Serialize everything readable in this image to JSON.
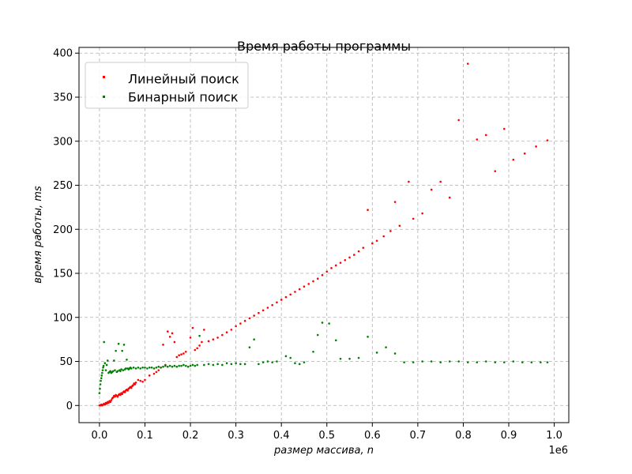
{
  "chart_data": {
    "type": "scatter",
    "title": "Время работы программы",
    "xlabel": "размер массива, n",
    "ylabel": "время работы, ms",
    "x_offset_label": "1e6",
    "xlim": [
      -0.045,
      1.032
    ],
    "ylim": [
      -19.5,
      406.5
    ],
    "x_ticks": [
      0.0,
      0.1,
      0.2,
      0.3,
      0.4,
      0.5,
      0.6,
      0.7,
      0.8,
      0.9,
      1.0
    ],
    "x_tick_labels": [
      "0.0",
      "0.1",
      "0.2",
      "0.3",
      "0.4",
      "0.5",
      "0.6",
      "0.7",
      "0.8",
      "0.9",
      "1.0"
    ],
    "y_ticks": [
      0,
      50,
      100,
      150,
      200,
      250,
      300,
      350,
      400
    ],
    "y_tick_labels": [
      "0",
      "50",
      "100",
      "150",
      "200",
      "250",
      "300",
      "350",
      "400"
    ],
    "grid": true,
    "legend_position": "upper-left",
    "series": [
      {
        "name": "Линейный поиск",
        "color": "#ff0000",
        "marker": "point",
        "points": [
          [
            0.0,
            0
          ],
          [
            0.002,
            0
          ],
          [
            0.004,
            1
          ],
          [
            0.006,
            0
          ],
          [
            0.008,
            1
          ],
          [
            0.01,
            2
          ],
          [
            0.012,
            1
          ],
          [
            0.014,
            3
          ],
          [
            0.016,
            2
          ],
          [
            0.018,
            4
          ],
          [
            0.02,
            3
          ],
          [
            0.022,
            5
          ],
          [
            0.024,
            4
          ],
          [
            0.026,
            6
          ],
          [
            0.028,
            8
          ],
          [
            0.03,
            9
          ],
          [
            0.032,
            11
          ],
          [
            0.034,
            10
          ],
          [
            0.036,
            12
          ],
          [
            0.038,
            11
          ],
          [
            0.04,
            10
          ],
          [
            0.042,
            12
          ],
          [
            0.044,
            13
          ],
          [
            0.046,
            12
          ],
          [
            0.048,
            14
          ],
          [
            0.05,
            13
          ],
          [
            0.052,
            15
          ],
          [
            0.054,
            16
          ],
          [
            0.056,
            15
          ],
          [
            0.058,
            17
          ],
          [
            0.06,
            18
          ],
          [
            0.062,
            17
          ],
          [
            0.064,
            19
          ],
          [
            0.066,
            20
          ],
          [
            0.068,
            21
          ],
          [
            0.07,
            20
          ],
          [
            0.072,
            22
          ],
          [
            0.074,
            23
          ],
          [
            0.076,
            25
          ],
          [
            0.078,
            24
          ],
          [
            0.08,
            26
          ],
          [
            0.085,
            29
          ],
          [
            0.09,
            28
          ],
          [
            0.095,
            27
          ],
          [
            0.1,
            29
          ],
          [
            0.11,
            34
          ],
          [
            0.12,
            36
          ],
          [
            0.125,
            38
          ],
          [
            0.13,
            40
          ],
          [
            0.135,
            43
          ],
          [
            0.14,
            69
          ],
          [
            0.145,
            46
          ],
          [
            0.15,
            84
          ],
          [
            0.155,
            78
          ],
          [
            0.16,
            82
          ],
          [
            0.165,
            72
          ],
          [
            0.17,
            55
          ],
          [
            0.175,
            57
          ],
          [
            0.18,
            58
          ],
          [
            0.185,
            59
          ],
          [
            0.19,
            61
          ],
          [
            0.2,
            77
          ],
          [
            0.205,
            88
          ],
          [
            0.21,
            63
          ],
          [
            0.215,
            65
          ],
          [
            0.22,
            68
          ],
          [
            0.225,
            72
          ],
          [
            0.23,
            86
          ],
          [
            0.24,
            73
          ],
          [
            0.25,
            75
          ],
          [
            0.26,
            77
          ],
          [
            0.27,
            80
          ],
          [
            0.28,
            83
          ],
          [
            0.29,
            86
          ],
          [
            0.3,
            90
          ],
          [
            0.31,
            93
          ],
          [
            0.32,
            96
          ],
          [
            0.33,
            99
          ],
          [
            0.34,
            102
          ],
          [
            0.35,
            105
          ],
          [
            0.36,
            108
          ],
          [
            0.37,
            111
          ],
          [
            0.38,
            114
          ],
          [
            0.39,
            117
          ],
          [
            0.4,
            120
          ],
          [
            0.41,
            123
          ],
          [
            0.42,
            126
          ],
          [
            0.43,
            129
          ],
          [
            0.44,
            132
          ],
          [
            0.45,
            135
          ],
          [
            0.46,
            138
          ],
          [
            0.47,
            141
          ],
          [
            0.48,
            144
          ],
          [
            0.49,
            148
          ],
          [
            0.5,
            152
          ],
          [
            0.51,
            156
          ],
          [
            0.52,
            159
          ],
          [
            0.53,
            162
          ],
          [
            0.54,
            165
          ],
          [
            0.55,
            168
          ],
          [
            0.56,
            171
          ],
          [
            0.57,
            175
          ],
          [
            0.58,
            179
          ],
          [
            0.59,
            222
          ],
          [
            0.6,
            184
          ],
          [
            0.61,
            187
          ],
          [
            0.625,
            192
          ],
          [
            0.64,
            198
          ],
          [
            0.65,
            231
          ],
          [
            0.66,
            204
          ],
          [
            0.68,
            254
          ],
          [
            0.69,
            212
          ],
          [
            0.71,
            218
          ],
          [
            0.73,
            245
          ],
          [
            0.75,
            254
          ],
          [
            0.77,
            236
          ],
          [
            0.79,
            324
          ],
          [
            0.81,
            388
          ],
          [
            0.83,
            302
          ],
          [
            0.85,
            307
          ],
          [
            0.87,
            266
          ],
          [
            0.89,
            314
          ],
          [
            0.91,
            279
          ],
          [
            0.935,
            286
          ],
          [
            0.96,
            294
          ],
          [
            0.985,
            301
          ]
        ]
      },
      {
        "name": "Бинарный поиск",
        "color": "#008000",
        "marker": "point",
        "points": [
          [
            0.0,
            14
          ],
          [
            0.001,
            19
          ],
          [
            0.002,
            24
          ],
          [
            0.003,
            28
          ],
          [
            0.004,
            31
          ],
          [
            0.005,
            34
          ],
          [
            0.006,
            37
          ],
          [
            0.007,
            40
          ],
          [
            0.008,
            43
          ],
          [
            0.009,
            45
          ],
          [
            0.01,
            72
          ],
          [
            0.012,
            48
          ],
          [
            0.014,
            40
          ],
          [
            0.016,
            46
          ],
          [
            0.018,
            51
          ],
          [
            0.02,
            37
          ],
          [
            0.022,
            38
          ],
          [
            0.024,
            39
          ],
          [
            0.026,
            37
          ],
          [
            0.028,
            38
          ],
          [
            0.03,
            39
          ],
          [
            0.032,
            51
          ],
          [
            0.034,
            40
          ],
          [
            0.036,
            62
          ],
          [
            0.038,
            38
          ],
          [
            0.04,
            39
          ],
          [
            0.042,
            70
          ],
          [
            0.044,
            40
          ],
          [
            0.046,
            39
          ],
          [
            0.048,
            41
          ],
          [
            0.05,
            62
          ],
          [
            0.052,
            40
          ],
          [
            0.054,
            69
          ],
          [
            0.056,
            41
          ],
          [
            0.058,
            42
          ],
          [
            0.06,
            52
          ],
          [
            0.062,
            42
          ],
          [
            0.064,
            41
          ],
          [
            0.066,
            42
          ],
          [
            0.068,
            43
          ],
          [
            0.07,
            42
          ],
          [
            0.075,
            43
          ],
          [
            0.08,
            42
          ],
          [
            0.085,
            43
          ],
          [
            0.09,
            42
          ],
          [
            0.095,
            43
          ],
          [
            0.1,
            43
          ],
          [
            0.105,
            42
          ],
          [
            0.11,
            43
          ],
          [
            0.115,
            43
          ],
          [
            0.12,
            42
          ],
          [
            0.125,
            43
          ],
          [
            0.13,
            44
          ],
          [
            0.135,
            43
          ],
          [
            0.14,
            44
          ],
          [
            0.145,
            45
          ],
          [
            0.15,
            44
          ],
          [
            0.155,
            45
          ],
          [
            0.16,
            44
          ],
          [
            0.165,
            45
          ],
          [
            0.17,
            44
          ],
          [
            0.175,
            45
          ],
          [
            0.18,
            45
          ],
          [
            0.185,
            46
          ],
          [
            0.19,
            45
          ],
          [
            0.195,
            44
          ],
          [
            0.2,
            45
          ],
          [
            0.205,
            46
          ],
          [
            0.21,
            45
          ],
          [
            0.215,
            46
          ],
          [
            0.22,
            79
          ],
          [
            0.23,
            46
          ],
          [
            0.24,
            47
          ],
          [
            0.25,
            46
          ],
          [
            0.26,
            47
          ],
          [
            0.27,
            46
          ],
          [
            0.28,
            48
          ],
          [
            0.29,
            47
          ],
          [
            0.3,
            48
          ],
          [
            0.31,
            47
          ],
          [
            0.32,
            47
          ],
          [
            0.33,
            66
          ],
          [
            0.34,
            75
          ],
          [
            0.35,
            47
          ],
          [
            0.36,
            49
          ],
          [
            0.37,
            50
          ],
          [
            0.38,
            49
          ],
          [
            0.39,
            50
          ],
          [
            0.41,
            56
          ],
          [
            0.42,
            54
          ],
          [
            0.43,
            48
          ],
          [
            0.44,
            47
          ],
          [
            0.45,
            49
          ],
          [
            0.47,
            61
          ],
          [
            0.48,
            80
          ],
          [
            0.49,
            94
          ],
          [
            0.505,
            93
          ],
          [
            0.52,
            74
          ],
          [
            0.53,
            53
          ],
          [
            0.55,
            53
          ],
          [
            0.57,
            54
          ],
          [
            0.59,
            78
          ],
          [
            0.61,
            60
          ],
          [
            0.63,
            66
          ],
          [
            0.65,
            59
          ],
          [
            0.67,
            49
          ],
          [
            0.69,
            49
          ],
          [
            0.71,
            50
          ],
          [
            0.73,
            50
          ],
          [
            0.75,
            49
          ],
          [
            0.77,
            50
          ],
          [
            0.79,
            50
          ],
          [
            0.81,
            49
          ],
          [
            0.83,
            49
          ],
          [
            0.85,
            50
          ],
          [
            0.87,
            49
          ],
          [
            0.89,
            49
          ],
          [
            0.91,
            50
          ],
          [
            0.93,
            49
          ],
          [
            0.95,
            49
          ],
          [
            0.97,
            49
          ],
          [
            0.985,
            49
          ]
        ]
      }
    ]
  }
}
